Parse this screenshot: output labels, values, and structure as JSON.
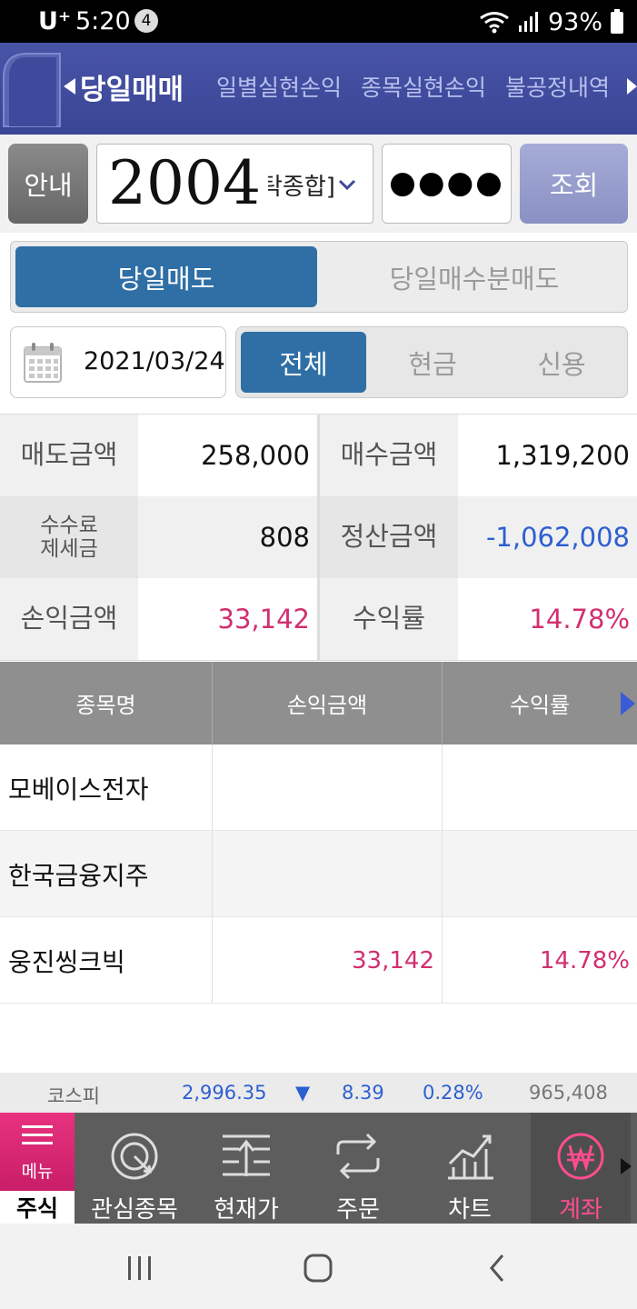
{
  "status_bar": {
    "carrier": "U⁺",
    "time": "5:20",
    "notification_count": "4",
    "battery": "93%"
  },
  "top_nav": {
    "tabs": [
      {
        "label": "당일매매",
        "active": true
      },
      {
        "label": "일별실현손익",
        "active": false
      },
      {
        "label": "종목실현손익",
        "active": false
      },
      {
        "label": "불공정내역",
        "active": false
      }
    ]
  },
  "account": {
    "guide_label": "안내",
    "account_number": "2004",
    "account_suffix": "탁종합]",
    "password_mask": "●●●●",
    "query_label": "조회"
  },
  "segment": {
    "active": "당일매도",
    "inactive": "당일매수분매도"
  },
  "filters": {
    "date": "2021/03/24",
    "options": [
      "전체",
      "현금",
      "신용"
    ],
    "selected": "전체"
  },
  "summary": {
    "sell_amount_label": "매도금액",
    "sell_amount": "258,000",
    "buy_amount_label": "매수금액",
    "buy_amount": "1,319,200",
    "fee_label": "수수료\n제세금",
    "fee_line1": "수수료",
    "fee_line2": "제세금",
    "fee": "808",
    "settle_label": "정산금액",
    "settle_amount": "-1,062,008",
    "pnl_label": "손익금액",
    "pnl": "33,142",
    "return_label": "수익률",
    "return_rate": "14.78%"
  },
  "table": {
    "headers": [
      "종목명",
      "손익금액",
      "수익률"
    ],
    "rows": [
      {
        "name": "모베이스전자",
        "pnl": "",
        "rate": ""
      },
      {
        "name": "한국금융지주",
        "pnl": "",
        "rate": ""
      },
      {
        "name": "웅진씽크빅",
        "pnl": "33,142",
        "rate": "14.78%"
      }
    ]
  },
  "ticker": {
    "index_name": "코스피",
    "value": "2,996.35",
    "direction": "▼",
    "change": "8.39",
    "change_rate": "0.28%",
    "volume": "965,408"
  },
  "app_nav": {
    "menu_label": "메뉴",
    "stock_tab": "주식",
    "items": [
      {
        "label": "관심종목",
        "icon": "watchlist-icon"
      },
      {
        "label": "현재가",
        "icon": "current-price-icon"
      },
      {
        "label": "주문",
        "icon": "order-icon"
      },
      {
        "label": "차트",
        "icon": "chart-icon"
      },
      {
        "label": "계좌",
        "icon": "won-account-icon",
        "active": true
      }
    ]
  },
  "colors": {
    "nav_blue": "#3f4a9c",
    "active_blue": "#2f6fa5",
    "profit_pink": "#d22f6f",
    "loss_blue": "#2c5fd0",
    "menu_pink": "#e02a78"
  }
}
